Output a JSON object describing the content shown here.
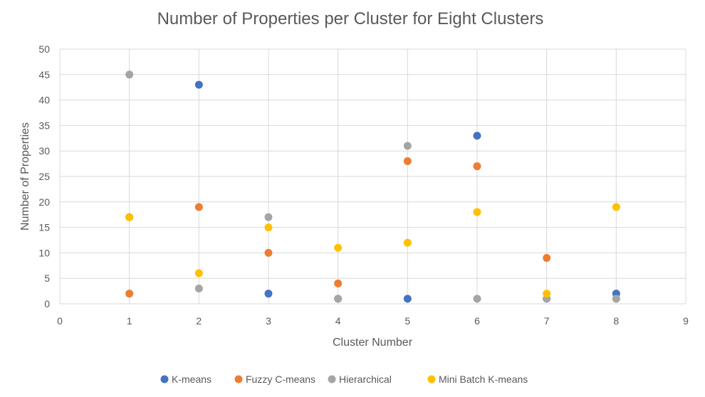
{
  "chart_data": {
    "type": "scatter",
    "title": "Number of Properties per Cluster for Eight Clusters",
    "xlabel": "Cluster Number",
    "ylabel": "Number of Properties",
    "xlim": [
      0,
      9
    ],
    "ylim": [
      0,
      50
    ],
    "xticks": [
      "0",
      "1",
      "2",
      "3",
      "4",
      "5",
      "6",
      "7",
      "8",
      "9"
    ],
    "yticks": [
      "0",
      "5",
      "10",
      "15",
      "20",
      "25",
      "30",
      "35",
      "40",
      "45",
      "50"
    ],
    "grid": true,
    "legend_position": "bottom",
    "series": [
      {
        "name": "K-means",
        "color": "#4472C4",
        "x": [
          1,
          2,
          3,
          4,
          5,
          6,
          7,
          8
        ],
        "y": [
          17,
          43,
          2,
          1,
          1,
          33,
          1,
          2
        ]
      },
      {
        "name": "Fuzzy C-means",
        "color": "#ED7D31",
        "x": [
          1,
          2,
          3,
          4,
          5,
          6,
          7,
          8
        ],
        "y": [
          2,
          19,
          10,
          4,
          28,
          27,
          9,
          1
        ]
      },
      {
        "name": "Hierarchical",
        "color": "#A5A5A5",
        "x": [
          1,
          2,
          3,
          4,
          5,
          6,
          7,
          8
        ],
        "y": [
          45,
          3,
          17,
          1,
          31,
          1,
          1,
          1
        ]
      },
      {
        "name": "Mini Batch K-means",
        "color": "#FFC000",
        "x": [
          1,
          2,
          3,
          4,
          5,
          6,
          7,
          8
        ],
        "y": [
          17,
          6,
          15,
          11,
          12,
          18,
          2,
          19
        ]
      }
    ]
  }
}
